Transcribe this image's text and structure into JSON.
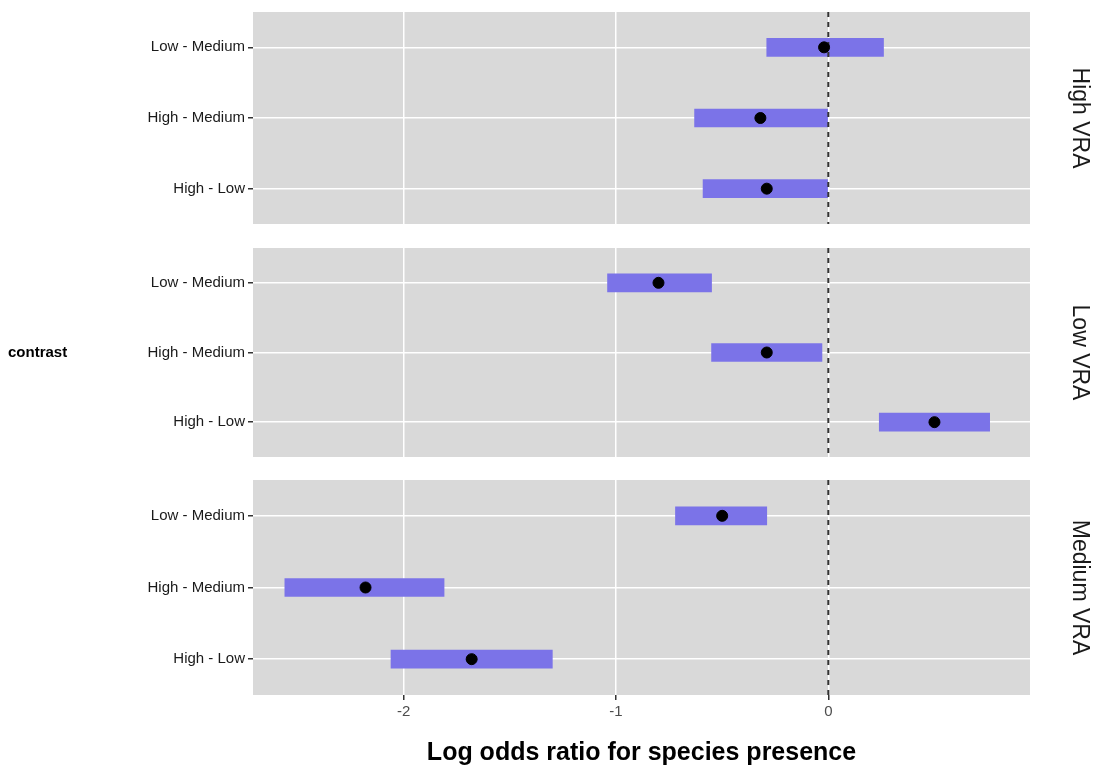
{
  "chart_data": [
    {
      "type": "bar",
      "orientation": "horizontal",
      "y2label": "High VRA",
      "categories": [
        "Low - Medium",
        "High - Medium",
        "High - Low"
      ],
      "series": [
        {
          "color": "#7b73e8",
          "base": [
            -0.29,
            -0.63,
            -0.59
          ],
          "values": [
            0.55,
            0.63,
            0.59
          ]
        },
        {
          "type": "scatter",
          "color": "#000000",
          "values": [
            -0.02,
            -0.32,
            -0.29
          ]
        }
      ],
      "xlim": [
        -2.71,
        0.95
      ],
      "xticks": [
        -2,
        -1,
        0
      ],
      "ref_lines": [
        {
          "axis": "x",
          "value": 0,
          "line_style": "dashed",
          "color": "#333333"
        }
      ],
      "grid": true,
      "marker": "circle",
      "tick_labels": "y"
    },
    {
      "type": "bar",
      "orientation": "horizontal",
      "y2label": "Low VRA",
      "ylabel": "contrast",
      "categories": [
        "Low - Medium",
        "High - Medium",
        "High - Low"
      ],
      "series": [
        {
          "color": "#7b73e8",
          "base": [
            -1.04,
            -0.55,
            0.24
          ],
          "values": [
            0.49,
            0.52,
            0.52
          ]
        },
        {
          "type": "scatter",
          "color": "#000000",
          "values": [
            -0.8,
            -0.29,
            0.5
          ]
        }
      ],
      "xlim": [
        -2.71,
        0.95
      ],
      "xticks": [
        -2,
        -1,
        0
      ],
      "ref_lines": [
        {
          "axis": "x",
          "value": 0,
          "line_style": "dashed",
          "color": "#333333"
        }
      ],
      "grid": true,
      "marker": "circle",
      "tick_labels": "y"
    },
    {
      "type": "bar",
      "orientation": "horizontal",
      "y2label": "Medium VRA",
      "xlabel": "Log odds ratio for species presence",
      "categories": [
        "Low - Medium",
        "High - Medium",
        "High - Low"
      ],
      "series": [
        {
          "color": "#7b73e8",
          "base": [
            -0.72,
            -2.56,
            -2.06
          ],
          "values": [
            0.43,
            0.75,
            0.76
          ]
        },
        {
          "type": "scatter",
          "color": "#000000",
          "values": [
            -0.5,
            -2.18,
            -1.68
          ]
        }
      ],
      "xlim": [
        -2.71,
        0.95
      ],
      "xticks": [
        -2,
        -1,
        0
      ],
      "ref_lines": [
        {
          "axis": "x",
          "value": 0,
          "line_style": "dashed",
          "color": "#333333"
        }
      ],
      "grid": true,
      "marker": "circle"
    }
  ]
}
